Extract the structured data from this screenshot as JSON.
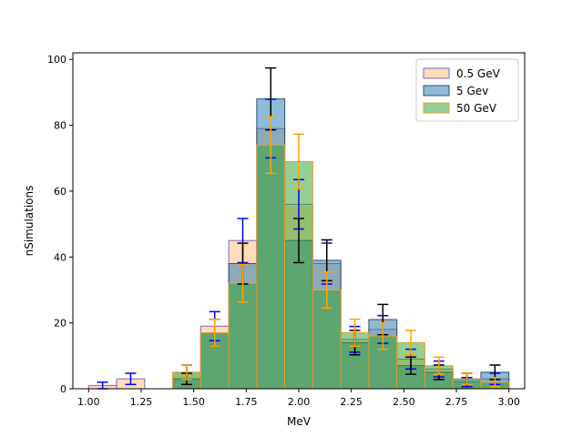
{
  "chart_data": {
    "type": "bar",
    "title": "",
    "xlabel": "MeV",
    "ylabel": "nSimulations",
    "xlim": [
      0.925,
      3.075
    ],
    "ylim": [
      0,
      102
    ],
    "x_ticks": [
      1.0,
      1.25,
      1.5,
      1.75,
      2.0,
      2.25,
      2.5,
      2.75,
      3.0
    ],
    "x_tick_labels": [
      "1.00",
      "1.25",
      "1.50",
      "1.75",
      "2.00",
      "2.25",
      "2.50",
      "2.75",
      "3.00"
    ],
    "y_ticks": [
      0,
      20,
      40,
      60,
      80,
      100
    ],
    "y_tick_labels": [
      "0",
      "20",
      "40",
      "60",
      "80",
      "100"
    ],
    "legend_position": "top-right",
    "bin_edges": [
      1.0,
      1.1333,
      1.2667,
      1.4,
      1.5333,
      1.6667,
      1.8,
      1.9333,
      2.0667,
      2.2,
      2.3333,
      2.4667,
      2.6,
      2.7333,
      2.8667,
      3.0
    ],
    "series": [
      {
        "name": "0.5 GeV",
        "fill": "#ffbb78",
        "edge": "#7b68c8",
        "error_color": "#0000ff",
        "values": [
          1,
          3,
          0,
          5,
          19,
          45,
          79,
          56,
          38,
          15,
          18,
          9,
          6,
          2,
          3
        ],
        "errors": [
          1,
          1.7,
          0,
          2.2,
          4.4,
          6.7,
          8.9,
          7.5,
          6.2,
          3.9,
          4.2,
          3,
          2.4,
          1.4,
          1.7
        ]
      },
      {
        "name": "5 Gev",
        "fill": "#1f77b4",
        "edge": "#2f4f6f",
        "error_color": "#000000",
        "values": [
          0,
          0,
          0,
          3,
          17,
          38,
          88,
          45,
          39,
          14,
          21,
          7,
          5,
          3,
          5
        ],
        "errors": [
          0,
          0,
          0,
          1.7,
          4.1,
          6.2,
          9.4,
          6.7,
          6.2,
          3.7,
          4.6,
          2.6,
          2.2,
          1.7,
          2.2
        ]
      },
      {
        "name": "50 GeV",
        "fill": "#2ca02c",
        "edge": "#e8a030",
        "error_color": "#ffa500",
        "values": [
          0,
          0,
          0,
          5,
          17,
          32,
          74,
          69,
          30,
          17,
          16,
          14,
          7,
          3,
          2
        ],
        "errors": [
          0,
          0,
          0,
          2.2,
          4.1,
          5.7,
          8.6,
          8.3,
          5.5,
          4.1,
          4,
          3.7,
          2.6,
          1.7,
          1.4
        ]
      }
    ]
  }
}
